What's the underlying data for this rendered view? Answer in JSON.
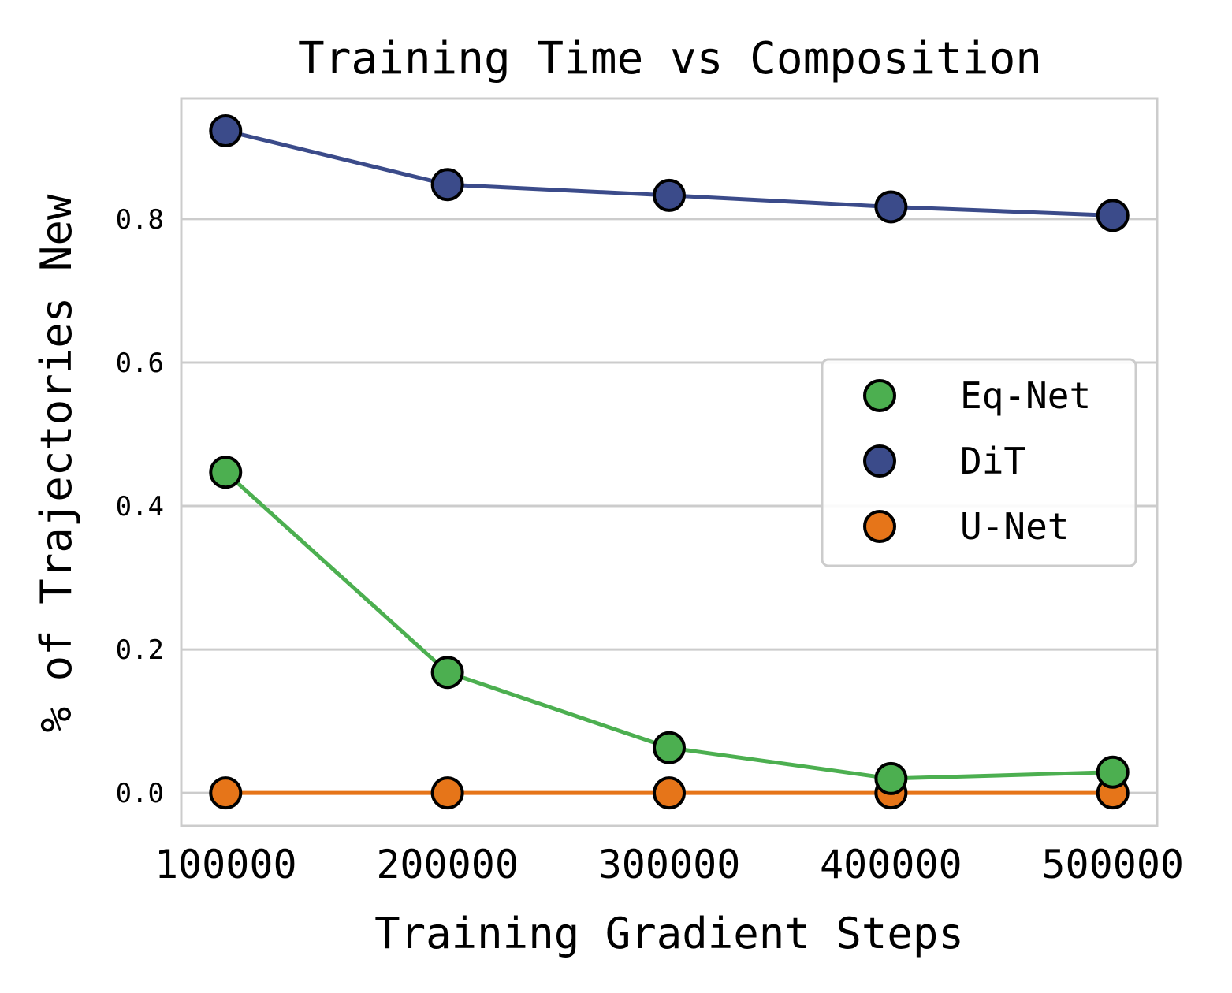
{
  "chart_data": {
    "type": "line",
    "title": "Training Time vs Composition",
    "xlabel": "Training Gradient Steps",
    "ylabel": "% of Trajectories New",
    "x": [
      100000,
      200000,
      300000,
      400000,
      500000
    ],
    "x_tick_labels": [
      "100000",
      "200000",
      "300000",
      "400000",
      "500000"
    ],
    "y_ticks": [
      0.0,
      0.2,
      0.4,
      0.6,
      0.8
    ],
    "y_tick_labels": [
      "0.0",
      "0.2",
      "0.4",
      "0.6",
      "0.8"
    ],
    "xlim": [
      80000,
      520000
    ],
    "ylim": [
      -0.046,
      0.968
    ],
    "grid": "horizontal",
    "legend_position": "center-right",
    "series": [
      {
        "name": "Eq-Net",
        "color": "#4caf50",
        "values": [
          0.447,
          0.168,
          0.063,
          0.02,
          0.029
        ]
      },
      {
        "name": "DiT",
        "color": "#3b4b8a",
        "values": [
          0.923,
          0.848,
          0.833,
          0.817,
          0.805
        ]
      },
      {
        "name": "U-Net",
        "color": "#e67519",
        "values": [
          0.0,
          0.0,
          0.0,
          0.0,
          0.0
        ]
      }
    ],
    "draw_order": [
      "U-Net",
      "DiT",
      "Eq-Net"
    ]
  }
}
